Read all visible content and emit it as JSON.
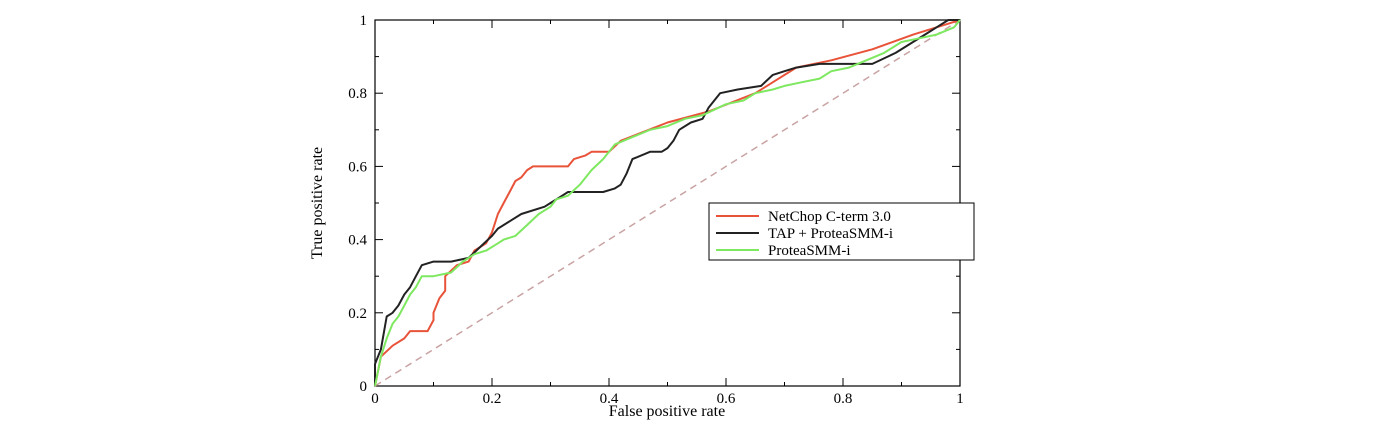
{
  "chart_data": {
    "type": "line",
    "title": "",
    "xlabel": "False positive rate",
    "ylabel": "True positive rate",
    "xlim": [
      0,
      1
    ],
    "ylim": [
      0,
      1
    ],
    "x_ticks": [
      "0",
      "0.2",
      "0.4",
      "0.6",
      "0.8",
      "1"
    ],
    "y_ticks": [
      "0",
      "0.2",
      "0.4",
      "0.6",
      "0.8",
      "1"
    ],
    "grid": false,
    "legend_position": "right",
    "series": [
      {
        "name": "NetChop C-term 3.0",
        "color": "#e8533a",
        "points": [
          [
            0,
            0
          ],
          [
            0.01,
            0.08
          ],
          [
            0.03,
            0.11
          ],
          [
            0.05,
            0.13
          ],
          [
            0.06,
            0.15
          ],
          [
            0.09,
            0.15
          ],
          [
            0.1,
            0.18
          ],
          [
            0.1,
            0.2
          ],
          [
            0.11,
            0.24
          ],
          [
            0.12,
            0.26
          ],
          [
            0.12,
            0.3
          ],
          [
            0.14,
            0.33
          ],
          [
            0.16,
            0.34
          ],
          [
            0.17,
            0.37
          ],
          [
            0.19,
            0.39
          ],
          [
            0.2,
            0.42
          ],
          [
            0.21,
            0.47
          ],
          [
            0.22,
            0.5
          ],
          [
            0.23,
            0.53
          ],
          [
            0.24,
            0.56
          ],
          [
            0.25,
            0.57
          ],
          [
            0.26,
            0.59
          ],
          [
            0.27,
            0.6
          ],
          [
            0.33,
            0.6
          ],
          [
            0.34,
            0.62
          ],
          [
            0.36,
            0.63
          ],
          [
            0.37,
            0.64
          ],
          [
            0.4,
            0.64
          ],
          [
            0.42,
            0.67
          ],
          [
            0.5,
            0.72
          ],
          [
            0.57,
            0.75
          ],
          [
            0.65,
            0.8
          ],
          [
            0.72,
            0.87
          ],
          [
            0.78,
            0.89
          ],
          [
            0.85,
            0.92
          ],
          [
            0.92,
            0.96
          ],
          [
            0.98,
            0.99
          ],
          [
            1,
            1
          ]
        ]
      },
      {
        "name": "TAP + ProteaSMM-i",
        "color": "#222222",
        "points": [
          [
            0,
            0
          ],
          [
            0,
            0.06
          ],
          [
            0.01,
            0.1
          ],
          [
            0.02,
            0.19
          ],
          [
            0.03,
            0.2
          ],
          [
            0.04,
            0.22
          ],
          [
            0.05,
            0.25
          ],
          [
            0.06,
            0.27
          ],
          [
            0.07,
            0.3
          ],
          [
            0.08,
            0.33
          ],
          [
            0.1,
            0.34
          ],
          [
            0.13,
            0.34
          ],
          [
            0.16,
            0.35
          ],
          [
            0.18,
            0.38
          ],
          [
            0.2,
            0.41
          ],
          [
            0.21,
            0.43
          ],
          [
            0.23,
            0.45
          ],
          [
            0.25,
            0.47
          ],
          [
            0.29,
            0.49
          ],
          [
            0.3,
            0.5
          ],
          [
            0.31,
            0.51
          ],
          [
            0.32,
            0.52
          ],
          [
            0.33,
            0.53
          ],
          [
            0.39,
            0.53
          ],
          [
            0.41,
            0.54
          ],
          [
            0.42,
            0.55
          ],
          [
            0.43,
            0.58
          ],
          [
            0.44,
            0.62
          ],
          [
            0.47,
            0.64
          ],
          [
            0.49,
            0.64
          ],
          [
            0.5,
            0.65
          ],
          [
            0.51,
            0.67
          ],
          [
            0.52,
            0.7
          ],
          [
            0.54,
            0.72
          ],
          [
            0.56,
            0.73
          ],
          [
            0.57,
            0.76
          ],
          [
            0.59,
            0.8
          ],
          [
            0.62,
            0.81
          ],
          [
            0.66,
            0.82
          ],
          [
            0.68,
            0.85
          ],
          [
            0.7,
            0.86
          ],
          [
            0.72,
            0.87
          ],
          [
            0.76,
            0.88
          ],
          [
            0.85,
            0.88
          ],
          [
            0.89,
            0.91
          ],
          [
            0.94,
            0.96
          ],
          [
            0.96,
            0.98
          ],
          [
            0.98,
            1
          ],
          [
            1,
            1
          ]
        ]
      },
      {
        "name": "ProteaSMM-i",
        "color": "#7ee860",
        "points": [
          [
            0,
            0
          ],
          [
            0.01,
            0.08
          ],
          [
            0.02,
            0.13
          ],
          [
            0.03,
            0.17
          ],
          [
            0.04,
            0.19
          ],
          [
            0.05,
            0.22
          ],
          [
            0.06,
            0.25
          ],
          [
            0.07,
            0.27
          ],
          [
            0.08,
            0.3
          ],
          [
            0.1,
            0.3
          ],
          [
            0.13,
            0.31
          ],
          [
            0.15,
            0.34
          ],
          [
            0.17,
            0.36
          ],
          [
            0.19,
            0.37
          ],
          [
            0.21,
            0.39
          ],
          [
            0.22,
            0.4
          ],
          [
            0.24,
            0.41
          ],
          [
            0.26,
            0.44
          ],
          [
            0.28,
            0.47
          ],
          [
            0.3,
            0.49
          ],
          [
            0.31,
            0.51
          ],
          [
            0.33,
            0.52
          ],
          [
            0.35,
            0.55
          ],
          [
            0.37,
            0.59
          ],
          [
            0.39,
            0.62
          ],
          [
            0.41,
            0.66
          ],
          [
            0.44,
            0.68
          ],
          [
            0.47,
            0.7
          ],
          [
            0.5,
            0.71
          ],
          [
            0.53,
            0.73
          ],
          [
            0.56,
            0.74
          ],
          [
            0.6,
            0.77
          ],
          [
            0.63,
            0.78
          ],
          [
            0.65,
            0.8
          ],
          [
            0.68,
            0.81
          ],
          [
            0.7,
            0.82
          ],
          [
            0.73,
            0.83
          ],
          [
            0.76,
            0.84
          ],
          [
            0.78,
            0.86
          ],
          [
            0.81,
            0.87
          ],
          [
            0.84,
            0.89
          ],
          [
            0.87,
            0.91
          ],
          [
            0.9,
            0.94
          ],
          [
            0.93,
            0.95
          ],
          [
            0.96,
            0.96
          ],
          [
            0.99,
            0.98
          ],
          [
            1,
            1
          ]
        ]
      },
      {
        "name": "",
        "color": "#c9a3a3",
        "dashed": true,
        "points": [
          [
            0,
            0
          ],
          [
            1,
            1
          ]
        ]
      }
    ]
  }
}
